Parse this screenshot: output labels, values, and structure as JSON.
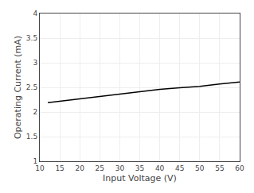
{
  "chart_data": {
    "type": "line",
    "x": [
      12,
      15,
      20,
      25,
      30,
      35,
      40,
      45,
      50,
      55,
      60
    ],
    "values": [
      2.19,
      2.22,
      2.26,
      2.31,
      2.36,
      2.41,
      2.46,
      2.49,
      2.52,
      2.57,
      2.61
    ],
    "color": "#000000",
    "xlabel": "Input Voltage (V)",
    "ylabel": "Operating Current (mA)",
    "xlim": [
      10,
      60
    ],
    "ylim": [
      1,
      4
    ],
    "xticks": [
      10,
      15,
      20,
      25,
      30,
      35,
      40,
      45,
      50,
      55,
      60
    ],
    "yticks": [
      1,
      1.5,
      2,
      2.5,
      3,
      3.5,
      4
    ],
    "grid": true
  }
}
